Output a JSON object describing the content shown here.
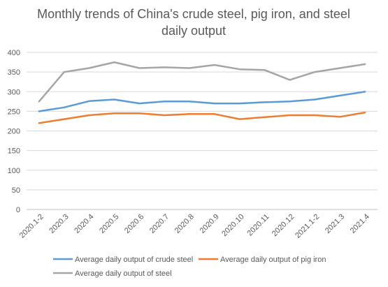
{
  "chart_data": {
    "type": "line",
    "title_line1": "Monthly trends of China's crude steel, pig iron, and steel",
    "title_line2": "daily output",
    "categories": [
      "2020.1-2",
      "2020.3",
      "2020.4",
      "2020.5",
      "2020.6",
      "2020.7",
      "2020.8",
      "2020.9",
      "2020.10",
      "2020.11",
      "2020.12",
      "2021.1-2",
      "2021.3",
      "2021.4"
    ],
    "ylim": [
      0,
      400
    ],
    "yticks": [
      0,
      50,
      100,
      150,
      200,
      250,
      300,
      350,
      400
    ],
    "grid": true,
    "legend_position": "bottom",
    "series": [
      {
        "name": "Average daily output of crude steel",
        "color": "#5B9BD5",
        "values": [
          250,
          260,
          276,
          280,
          270,
          275,
          275,
          270,
          270,
          273,
          275,
          280,
          290,
          300
        ]
      },
      {
        "name": "Average daily output of pig iron",
        "color": "#ED7D31",
        "values": [
          220,
          230,
          240,
          245,
          245,
          240,
          243,
          243,
          230,
          235,
          240,
          240,
          236,
          247
        ]
      },
      {
        "name": "Average daily output of steel",
        "color": "#A5A5A5",
        "values": [
          275,
          350,
          360,
          375,
          360,
          362,
          360,
          368,
          357,
          355,
          330,
          350,
          360,
          370
        ]
      }
    ]
  }
}
